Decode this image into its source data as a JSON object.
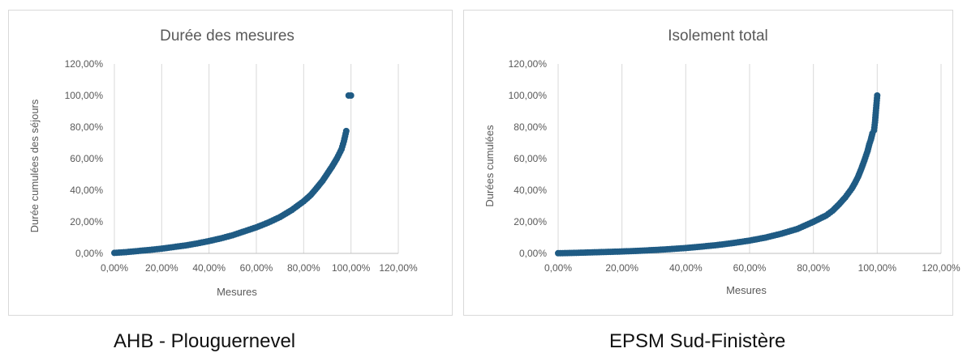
{
  "chart_data": [
    {
      "type": "scatter",
      "title": "Durée des mesures",
      "xlabel": "Mesures",
      "ylabel": "Durée cumulées des séjours",
      "xlim": [
        0,
        120
      ],
      "ylim": [
        0,
        120
      ],
      "xticks": [
        "0,00%",
        "20,00%",
        "40,00%",
        "60,00%",
        "80,00%",
        "100,00%",
        "120,00%"
      ],
      "yticks": [
        "0,00%",
        "20,00%",
        "40,00%",
        "60,00%",
        "80,00%",
        "100,00%",
        "120,00%"
      ],
      "grid": "vertical",
      "color": "#1f5b84",
      "series": [
        {
          "x": [
            0,
            5,
            10,
            15,
            20,
            25,
            30,
            35,
            40,
            45,
            50,
            55,
            60,
            65,
            70,
            75,
            80,
            83,
            85,
            88,
            90,
            92,
            94,
            95,
            96,
            97,
            98,
            99,
            100
          ],
          "y": [
            0.3,
            0.8,
            1.5,
            2.2,
            3,
            4,
            5,
            6.3,
            7.8,
            9.5,
            11.5,
            14,
            16.5,
            19.5,
            23,
            27.5,
            33,
            37,
            40.5,
            46,
            50.5,
            55,
            60,
            63,
            66,
            71,
            77.5,
            100,
            100
          ]
        }
      ],
      "caption": "AHB - Plouguernevel"
    },
    {
      "type": "scatter",
      "title": "Isolement total",
      "xlabel": "Mesures",
      "ylabel": "Durées cumulées",
      "xlim": [
        0,
        120
      ],
      "ylim": [
        0,
        120
      ],
      "xticks": [
        "0,00%",
        "20,00%",
        "40,00%",
        "60,00%",
        "80,00%",
        "100,00%",
        "120,00%"
      ],
      "yticks": [
        "0,00%",
        "20,00%",
        "40,00%",
        "60,00%",
        "80,00%",
        "100,00%",
        "120,00%"
      ],
      "grid": "vertical",
      "color": "#1f5b84",
      "series": [
        {
          "x": [
            0,
            5,
            10,
            15,
            20,
            25,
            30,
            35,
            40,
            45,
            50,
            55,
            60,
            65,
            70,
            75,
            80,
            84,
            86,
            88,
            90,
            92,
            93,
            94,
            95,
            96,
            97,
            97.5,
            98,
            98.5,
            99,
            99.3,
            99.6,
            100
          ],
          "y": [
            0.1,
            0.3,
            0.6,
            0.9,
            1.2,
            1.6,
            2.1,
            2.7,
            3.4,
            4.3,
            5.3,
            6.6,
            8.1,
            10,
            12.5,
            15.5,
            20,
            24,
            27,
            31,
            35.5,
            41,
            44.5,
            48.5,
            53.5,
            59,
            65,
            69,
            72,
            76,
            78,
            83,
            90.5,
            100
          ]
        }
      ],
      "caption": "EPSM Sud-Finistère"
    }
  ]
}
